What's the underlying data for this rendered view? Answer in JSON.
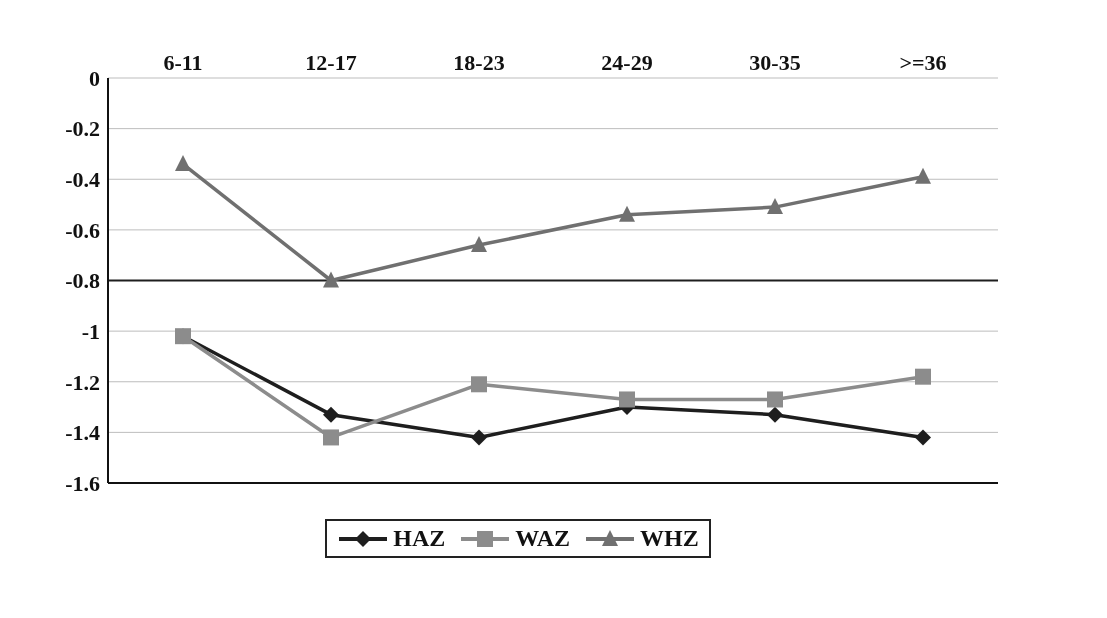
{
  "chart_data": {
    "type": "line",
    "categories": [
      "6-11",
      "12-17",
      "18-23",
      "24-29",
      "30-35",
      ">=36"
    ],
    "series": [
      {
        "name": "HAZ",
        "color": "#1e1e1e",
        "marker": "diamond",
        "values": [
          -1.02,
          -1.33,
          -1.42,
          -1.3,
          -1.33,
          -1.42
        ]
      },
      {
        "name": "WAZ",
        "color": "#8c8c8c",
        "marker": "square",
        "values": [
          -1.02,
          -1.42,
          -1.21,
          -1.27,
          -1.27,
          -1.18
        ]
      },
      {
        "name": "WHZ",
        "color": "#707070",
        "marker": "triangle",
        "values": [
          -0.34,
          -0.8,
          -0.66,
          -0.54,
          -0.51,
          -0.39
        ]
      }
    ],
    "ylim": [
      -1.6,
      0
    ],
    "yticks": [
      0,
      -0.2,
      -0.4,
      -0.6,
      -0.8,
      -1,
      -1.2,
      -1.4,
      -1.6
    ],
    "ref_lines": [
      {
        "axis": "y",
        "value": -0.8,
        "color": "#1e1e1e"
      }
    ],
    "grid": "y",
    "legend": "bottom",
    "line_style": "solid"
  }
}
